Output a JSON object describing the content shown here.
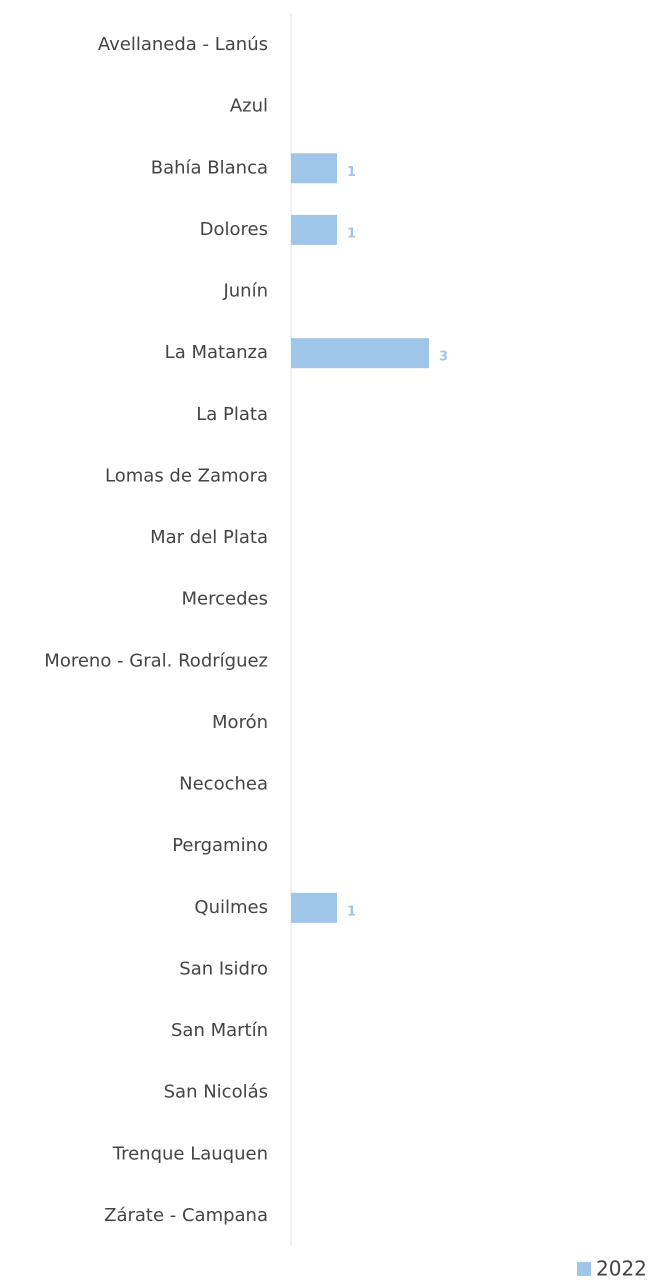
{
  "chart_data": {
    "type": "hbar",
    "categories": [
      "Avellaneda - Lanús",
      "Azul",
      "Bahía Blanca",
      "Dolores",
      "Junín",
      "La Matanza",
      "La Plata",
      "Lomas de Zamora",
      "Mar del Plata",
      "Mercedes",
      "Moreno - Gral. Rodríguez",
      "Morón",
      "Necochea",
      "Pergamino",
      "Quilmes",
      "San Isidro",
      "San Martín",
      "San Nicolás",
      "Trenque Lauquen",
      "Zárate - Campana"
    ],
    "series": [
      {
        "name": "2022",
        "color": "#9fc5e8",
        "values": [
          0,
          0,
          1,
          1,
          0,
          3,
          0,
          0,
          0,
          0,
          0,
          0,
          0,
          0,
          1,
          0,
          0,
          0,
          0,
          0
        ]
      }
    ],
    "xlim": [
      0,
      8
    ],
    "legend": "bottom-right"
  }
}
